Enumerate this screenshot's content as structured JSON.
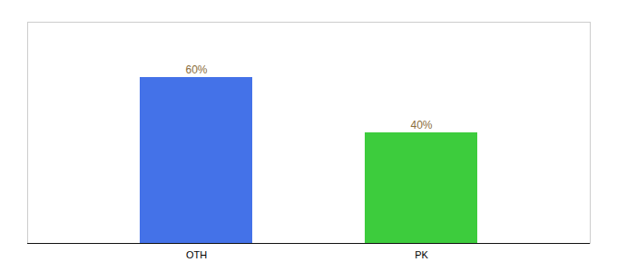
{
  "chart_data": {
    "type": "bar",
    "categories": [
      "OTH",
      "PK"
    ],
    "values": [
      60,
      40
    ],
    "value_labels": [
      "60%",
      "40%"
    ],
    "colors": [
      "#4472e8",
      "#3dcc3d"
    ],
    "ylim": [
      0,
      80
    ],
    "data_labels": true,
    "tick_labels": "x",
    "grid": false
  }
}
